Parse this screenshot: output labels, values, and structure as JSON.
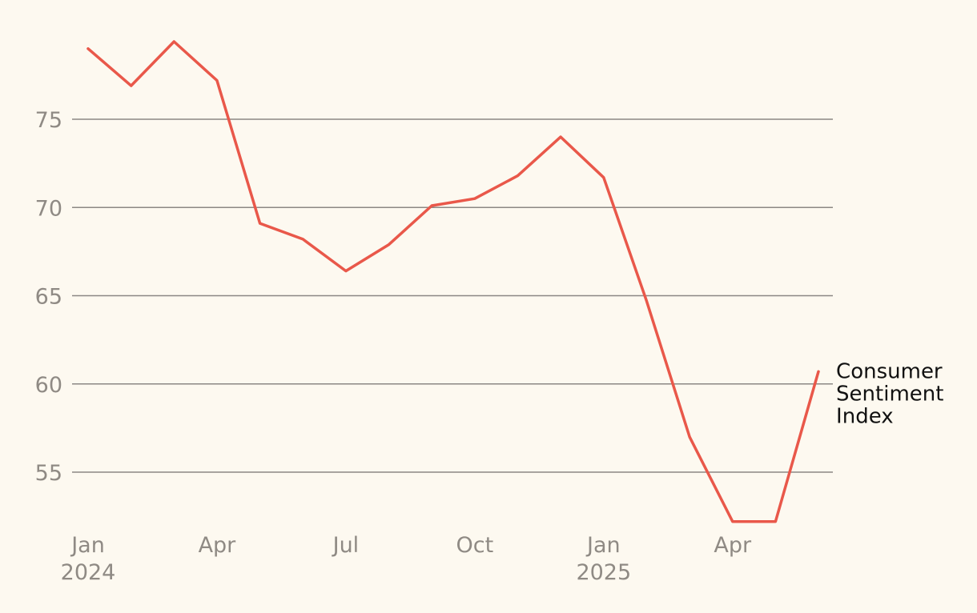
{
  "chart_data": {
    "type": "line",
    "title": "",
    "xlabel": "",
    "ylabel": "",
    "x": [
      "2024-01",
      "2024-02",
      "2024-03",
      "2024-04",
      "2024-05",
      "2024-06",
      "2024-07",
      "2024-08",
      "2024-09",
      "2024-10",
      "2024-11",
      "2024-12",
      "2025-01",
      "2025-02",
      "2025-03",
      "2025-04",
      "2025-05",
      "2025-06"
    ],
    "series": [
      {
        "name": "Consumer Sentiment Index",
        "label_lines": [
          "Consumer",
          "Sentiment",
          "Index"
        ],
        "color": "#e9584a",
        "values": [
          79.0,
          76.9,
          79.4,
          77.2,
          69.1,
          68.2,
          66.4,
          67.9,
          70.1,
          70.5,
          71.8,
          74.0,
          71.7,
          64.7,
          57.0,
          52.2,
          52.2,
          60.7
        ]
      }
    ],
    "ylim": [
      52.2,
      79.4
    ],
    "yticks": [
      "55",
      "60",
      "65",
      "70",
      "75"
    ],
    "xticks": [
      {
        "x": "2024-01",
        "lines": [
          "Jan",
          "2024"
        ]
      },
      {
        "x": "2024-04",
        "lines": [
          "Apr"
        ]
      },
      {
        "x": "2024-07",
        "lines": [
          "Jul"
        ]
      },
      {
        "x": "2024-10",
        "lines": [
          "Oct"
        ]
      },
      {
        "x": "2025-01",
        "lines": [
          "Jan",
          "2025"
        ]
      },
      {
        "x": "2025-04",
        "lines": [
          "Apr"
        ]
      }
    ],
    "grid": true,
    "legend": "end-of-line"
  }
}
